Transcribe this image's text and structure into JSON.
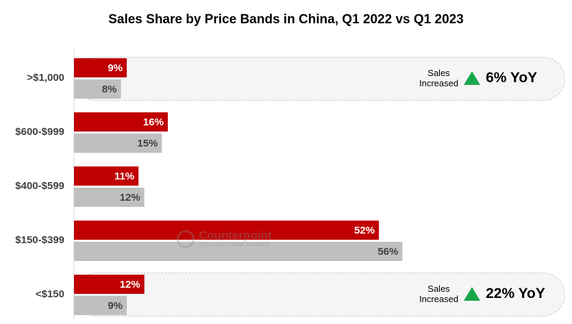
{
  "chart_data": {
    "type": "bar",
    "orientation": "horizontal",
    "title": "Sales Share by Price Bands in China, Q1 2022 vs Q1 2023",
    "categories": [
      ">$1,000",
      "$600-$999",
      "$400-$599",
      "$150-$399",
      "<$150"
    ],
    "series": [
      {
        "values": [
          9,
          16,
          11,
          52,
          12
        ],
        "labels": [
          "9%",
          "16%",
          "11%",
          "52%",
          "12%"
        ],
        "color": "#c00000"
      },
      {
        "values": [
          8,
          15,
          12,
          56,
          9
        ],
        "labels": [
          "8%",
          "15%",
          "12%",
          "56%",
          "9%"
        ],
        "color": "#bfbfbf"
      }
    ],
    "xlim": [
      0,
      100
    ],
    "grid": false,
    "legend": "none"
  },
  "callouts": [
    {
      "line1": "Sales",
      "line2": "Increased",
      "value": "6% YoY",
      "icon": "triangle-up-icon",
      "color": "#1aa64b"
    },
    {
      "line1": "Sales",
      "line2": "Increased",
      "value": "22% YoY",
      "icon": "triangle-up-icon",
      "color": "#1aa64b"
    }
  ],
  "watermark": {
    "brand": "Counterpoint",
    "sub": "Technology Market Research"
  }
}
